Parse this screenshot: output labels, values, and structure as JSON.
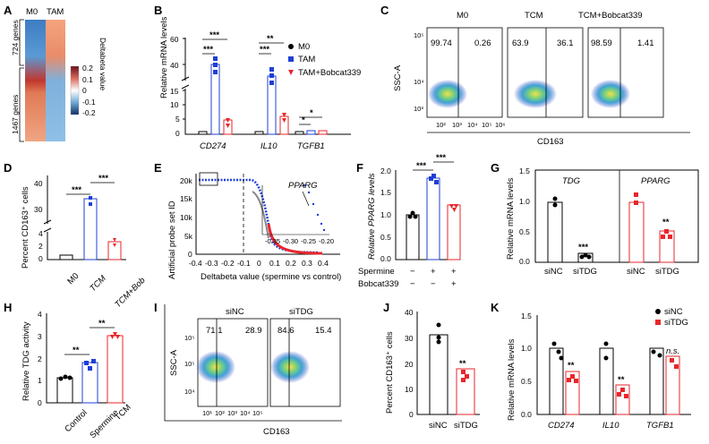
{
  "panels": {
    "A": "A",
    "B": "B",
    "C": "C",
    "D": "D",
    "E": "E",
    "F": "F",
    "G": "G",
    "H": "H",
    "I": "I",
    "J": "J",
    "K": "K"
  },
  "colors": {
    "black": "#000000",
    "blue": "#1f3fd6",
    "red": "#e8262b",
    "heat_pos": "#8b1a1a",
    "heat_neg": "#1d3f7a"
  },
  "heatmap": {
    "col1": "M0",
    "col2": "TAM",
    "rows1": "724 genes",
    "rows2": "1467 genes",
    "legend_title": "Deltabeta value",
    "ticks": [
      "0.2",
      "0.1",
      "0",
      "-0.1",
      "-0.2"
    ]
  },
  "panelB": {
    "ylabel": "Relative mRNA levels",
    "genes": [
      "CD274",
      "IL10",
      "TGFB1"
    ],
    "legend": [
      "M0",
      "TAM",
      "TAM+Bobcat339"
    ],
    "yticks_top": [
      "40",
      "60"
    ],
    "yticks_bottom": [
      "0",
      "5",
      "10",
      "15"
    ],
    "sig": [
      "***",
      "***",
      "***",
      "**",
      "*",
      "*"
    ]
  },
  "panelC": {
    "ylabel": "SSC-A",
    "xlabel": "CD163",
    "plots": [
      {
        "title": "M0",
        "left": "99.74",
        "right": "0.26"
      },
      {
        "title": "TCM",
        "left": "63.9",
        "right": "36.1"
      },
      {
        "title": "TCM+Bobcat339",
        "left": "98.59",
        "right": "1.41"
      }
    ],
    "yticks": [
      "10⁵",
      "10⁴",
      "10³"
    ],
    "xticks": [
      "10²",
      "10³",
      "10⁴",
      "10⁵",
      "10⁶"
    ]
  },
  "panelD": {
    "ylabel": "Percent CD163⁺ cells",
    "yticks_top": [
      "30",
      "40"
    ],
    "yticks_bottom": [
      "0",
      "2",
      "4"
    ],
    "categories": [
      "M0",
      "TCM",
      "TCM+Bob"
    ],
    "sig": [
      "***",
      "***"
    ]
  },
  "panelE": {
    "ylabel": "Artificial probe set ID",
    "xlabel": "Deltabeta value (spermine vs control)",
    "yticks": [
      "20k",
      "15k",
      "10k",
      "5k",
      "0"
    ],
    "xticks": [
      "-0.4",
      "-0.3",
      "-0.2",
      "-0.1",
      "0",
      "0.1",
      "0.2",
      "0.3",
      "0.4"
    ],
    "annotation": "PPARG",
    "inset_xticks": [
      "-0.35",
      "-0.30",
      "-0.25",
      "-0.20"
    ]
  },
  "panelF": {
    "ylabel": "Relative PPARG levels",
    "yticks": [
      "0.0",
      "0.5",
      "1.0",
      "1.5",
      "2.0"
    ],
    "rows": [
      {
        "label": "Spermine",
        "vals": [
          "−",
          "+",
          "+"
        ]
      },
      {
        "label": "Bobcat339",
        "vals": [
          "−",
          "−",
          "+"
        ]
      }
    ],
    "sig": [
      "***",
      "***"
    ]
  },
  "panelG": {
    "ylabel": "Relative mRNA levels",
    "yticks": [
      "0.0",
      "0.5",
      "1.0",
      "1.5"
    ],
    "groups": [
      "TDG",
      "PPARG"
    ],
    "xlabels": [
      "siNC",
      "siTDG",
      "siNC",
      "siTDG"
    ],
    "sig": [
      "***",
      "**"
    ]
  },
  "panelH": {
    "ylabel": "Relative TDG activity",
    "yticks": [
      "0",
      "1",
      "2",
      "3",
      "4"
    ],
    "categories": [
      "Control",
      "Spermine",
      "TCM"
    ],
    "sig": [
      "**",
      "**"
    ]
  },
  "panelI": {
    "ylabel": "SSC-A",
    "xlabel": "CD163",
    "plots": [
      {
        "title": "siNC",
        "left": "71.1",
        "right": "28.9"
      },
      {
        "title": "siTDG",
        "left": "84.6",
        "right": "15.4"
      }
    ],
    "yticks": [
      "10⁵",
      "10⁵",
      "10⁴"
    ],
    "xticks": [
      "10¹",
      "10²",
      "10³",
      "10⁴",
      "10⁵"
    ]
  },
  "panelJ": {
    "ylabel": "Percent CD163⁺ cells",
    "yticks": [
      "0",
      "10",
      "20",
      "30",
      "40"
    ],
    "categories": [
      "siNC",
      "siTDG"
    ],
    "sig": "**"
  },
  "panelK": {
    "ylabel": "Relative mRNA levels",
    "yticks": [
      "0.0",
      "0.5",
      "1.0",
      "1.5"
    ],
    "genes": [
      "CD274",
      "IL10",
      "TGFB1"
    ],
    "legend": [
      "siNC",
      "siTDG"
    ],
    "sig": [
      "**",
      "**",
      "n.s."
    ]
  },
  "chart_data": [
    {
      "type": "bar",
      "title": "",
      "categories": [
        "CD274",
        "IL10",
        "TGFB1"
      ],
      "series": [
        {
          "name": "M0",
          "values": [
            1,
            1,
            1
          ]
        },
        {
          "name": "TAM",
          "values": [
            38,
            36,
            1.6
          ]
        },
        {
          "name": "TAM+Bobcat339",
          "values": [
            6,
            7,
            1.3
          ]
        }
      ],
      "ylabel": "Relative mRNA levels"
    },
    {
      "type": "bar",
      "categories": [
        "M0",
        "TCM",
        "TCM+Bob"
      ],
      "values": [
        0.8,
        34,
        2.2
      ],
      "ylabel": "Percent CD163⁺ cells"
    },
    {
      "type": "bar",
      "categories": [
        "Spermine− Bobcat339−",
        "Spermine+ Bobcat339−",
        "Spermine+ Bobcat339+"
      ],
      "values": [
        1.0,
        1.82,
        1.22
      ],
      "ylabel": "Relative PPARG levels",
      "ylim": [
        0,
        2
      ]
    },
    {
      "type": "bar",
      "categories": [
        "TDG siNC",
        "TDG siTDG",
        "PPARG siNC",
        "PPARG siTDG"
      ],
      "values": [
        1.0,
        0.15,
        1.0,
        0.52
      ],
      "ylabel": "Relative mRNA levels",
      "ylim": [
        0,
        1.5
      ]
    },
    {
      "type": "bar",
      "categories": [
        "Control",
        "Spermine",
        "TCM"
      ],
      "values": [
        1.1,
        1.8,
        3.0
      ],
      "ylabel": "Relative TDG activity",
      "ylim": [
        0,
        4
      ]
    },
    {
      "type": "bar",
      "categories": [
        "siNC",
        "siTDG"
      ],
      "values": [
        31,
        17.5
      ],
      "ylabel": "Percent CD163⁺ cells",
      "ylim": [
        0,
        40
      ]
    },
    {
      "type": "bar",
      "categories": [
        "CD274",
        "IL10",
        "TGFB1"
      ],
      "series": [
        {
          "name": "siNC",
          "values": [
            1.0,
            1.0,
            1.0
          ]
        },
        {
          "name": "siTDG",
          "values": [
            0.65,
            0.45,
            0.88
          ]
        }
      ],
      "ylabel": "Relative mRNA levels",
      "ylim": [
        0,
        1.5
      ]
    }
  ]
}
